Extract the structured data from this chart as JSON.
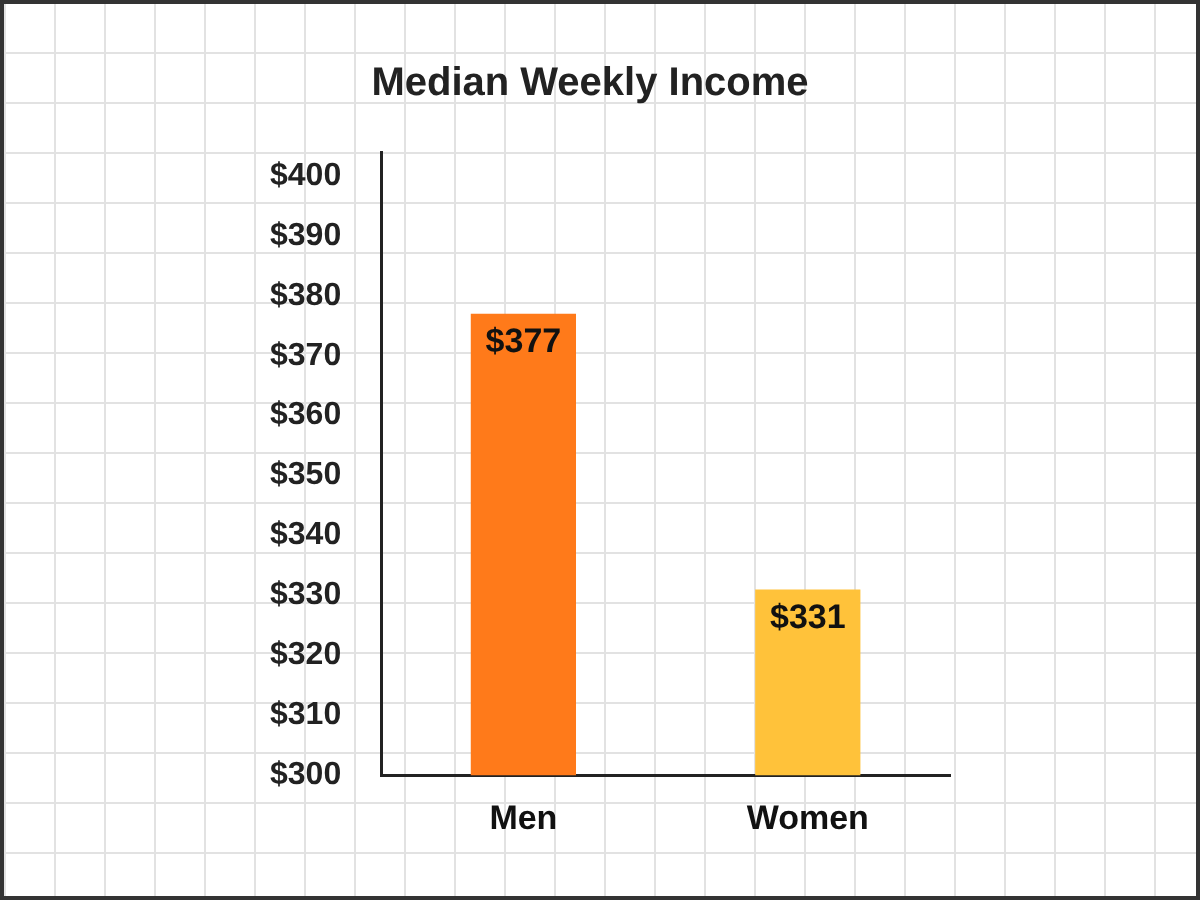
{
  "chart_data": {
    "type": "bar",
    "title": "Median Weekly Income",
    "categories": [
      "Men",
      "Women"
    ],
    "values": [
      377,
      331
    ],
    "colors": [
      "#ff7a1a",
      "#ffc23a"
    ],
    "value_labels": [
      "$377",
      "$331"
    ],
    "ylim": [
      300,
      404
    ],
    "yticks": [
      {
        "value": 300,
        "label": "$300"
      },
      {
        "value": 310,
        "label": "$310"
      },
      {
        "value": 320,
        "label": "$320"
      },
      {
        "value": 330,
        "label": "$330"
      },
      {
        "value": 340,
        "label": "$340"
      },
      {
        "value": 350,
        "label": "$350"
      },
      {
        "value": 360,
        "label": "$360"
      },
      {
        "value": 370,
        "label": "$370"
      },
      {
        "value": 380,
        "label": "$380"
      },
      {
        "value": 390,
        "label": "$390"
      },
      {
        "value": 400,
        "label": "$400"
      }
    ],
    "grid": false,
    "legend": false
  }
}
